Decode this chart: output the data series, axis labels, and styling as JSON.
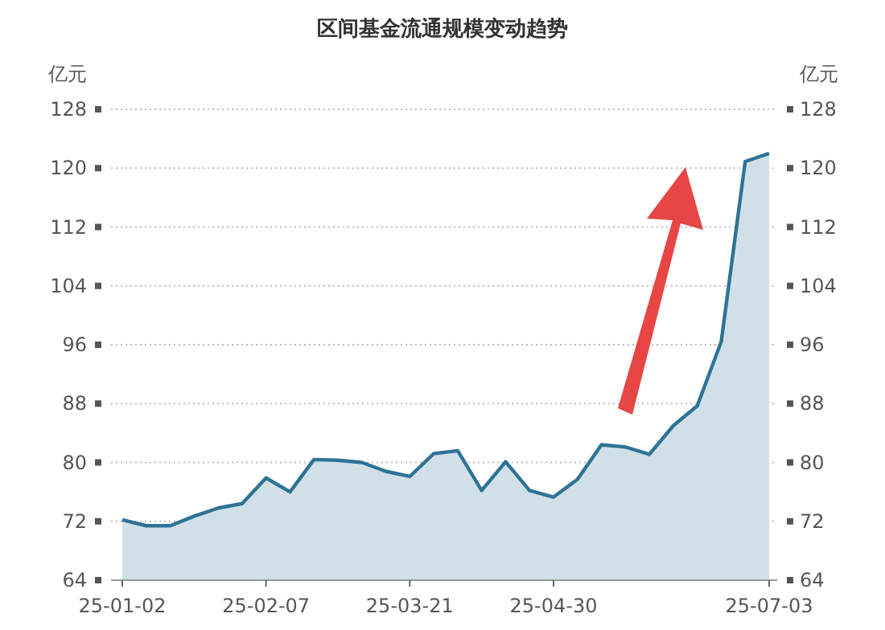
{
  "chart_data": {
    "type": "area",
    "title": "区间基金流通规模变动趋势",
    "ylabel": "亿元",
    "y2label": "亿元",
    "categories": [
      "25-01-02",
      null,
      null,
      null,
      null,
      null,
      "25-02-07",
      null,
      null,
      null,
      null,
      null,
      "25-03-21",
      null,
      null,
      null,
      null,
      null,
      "25-04-30",
      null,
      null,
      null,
      null,
      null,
      null,
      null,
      null,
      "25-07-03"
    ],
    "series": [
      {
        "color": "#2e7396",
        "values": [
          72.2,
          71.4,
          71.4,
          72.7,
          73.8,
          74.4,
          77.9,
          76.0,
          80.4,
          80.3,
          80.0,
          78.8,
          78.1,
          81.2,
          81.6,
          76.2,
          80.1,
          76.2,
          75.3,
          77.7,
          82.4,
          82.1,
          81.1,
          85.0,
          87.7,
          96.4,
          120.9,
          122.0
        ]
      }
    ],
    "ylim": [
      64,
      128
    ],
    "yticks": [
      64,
      72,
      80,
      88,
      96,
      104,
      112,
      120,
      128
    ],
    "y2lim": [
      64,
      128
    ],
    "y2ticks": [
      64,
      72,
      80,
      88,
      96,
      104,
      112,
      120,
      128
    ],
    "grid": "y"
  }
}
